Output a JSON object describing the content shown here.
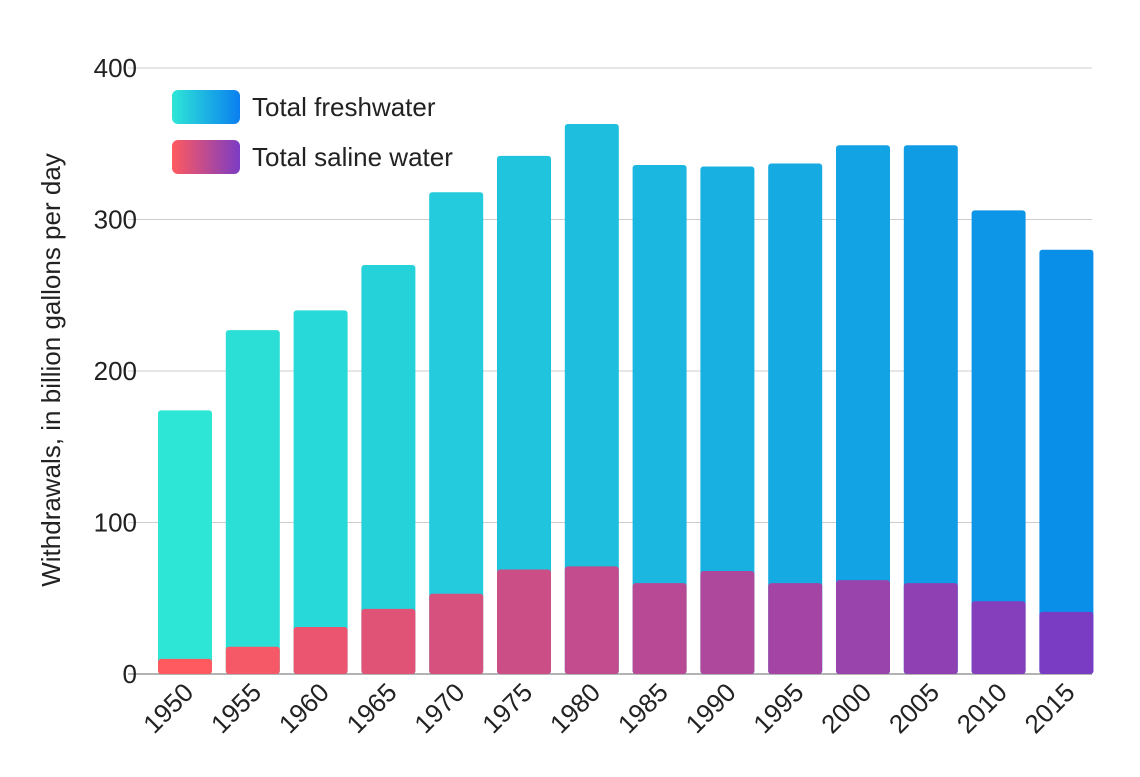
{
  "chart_data": {
    "type": "bar",
    "title": "",
    "xlabel": "",
    "ylabel": "Withdrawals, in billion gallons per day",
    "ylim": [
      0,
      400
    ],
    "yticks": [
      0,
      100,
      200,
      300,
      400
    ],
    "grid": true,
    "legend_position": "top-left",
    "categories": [
      "1950",
      "1955",
      "1960",
      "1965",
      "1970",
      "1975",
      "1980",
      "1985",
      "1990",
      "1995",
      "2000",
      "2005",
      "2010",
      "2015"
    ],
    "series": [
      {
        "name": "Total freshwater",
        "values": [
          174,
          227,
          240,
          270,
          318,
          342,
          363,
          336,
          335,
          337,
          349,
          349,
          306,
          280
        ],
        "color_start": "#2ee6d6",
        "color_end": "#0a8fe8"
      },
      {
        "name": "Total saline water",
        "values": [
          10,
          18,
          31,
          43,
          53,
          69,
          71,
          60,
          68,
          60,
          62,
          60,
          48,
          41
        ],
        "color_start": "#ff5a5f",
        "color_end": "#7b3cc4"
      }
    ]
  }
}
